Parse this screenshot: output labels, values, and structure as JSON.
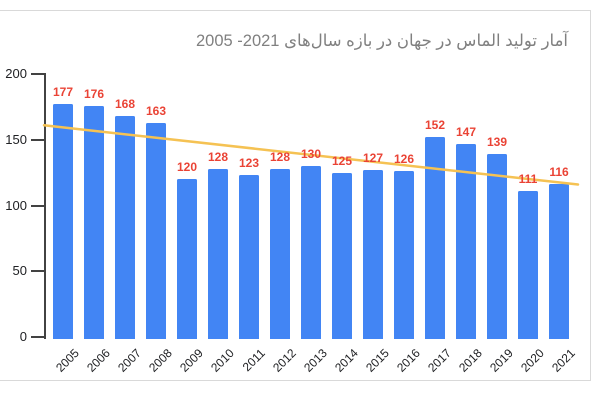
{
  "chart_data": {
    "type": "bar",
    "title": "آمار تولید الماس در جهان در بازه سال‌های 2021- 2005",
    "categories": [
      "2005",
      "2006",
      "2007",
      "2008",
      "2009",
      "2010",
      "2011",
      "2012",
      "2013",
      "2014",
      "2015",
      "2016",
      "2017",
      "2018",
      "2019",
      "2020",
      "2021"
    ],
    "values": [
      177,
      176,
      168,
      163,
      120,
      128,
      123,
      128,
      130,
      125,
      127,
      126,
      152,
      147,
      139,
      111,
      116
    ],
    "xlabel": "",
    "ylabel": "",
    "ylim": [
      0,
      200
    ],
    "yticks": [
      0,
      50,
      100,
      150,
      200
    ],
    "grid": false,
    "legend_position": "none",
    "data_labels": true,
    "trendline": {
      "start_value": 161,
      "end_value": 116
    },
    "colors": {
      "bar": "#4285F4",
      "data_label": "#EA4335",
      "trendline": "#F5C253",
      "axis": "#424242",
      "tick_label": "#202124",
      "title": "#808080",
      "card_border": "#D9D9D9"
    }
  }
}
